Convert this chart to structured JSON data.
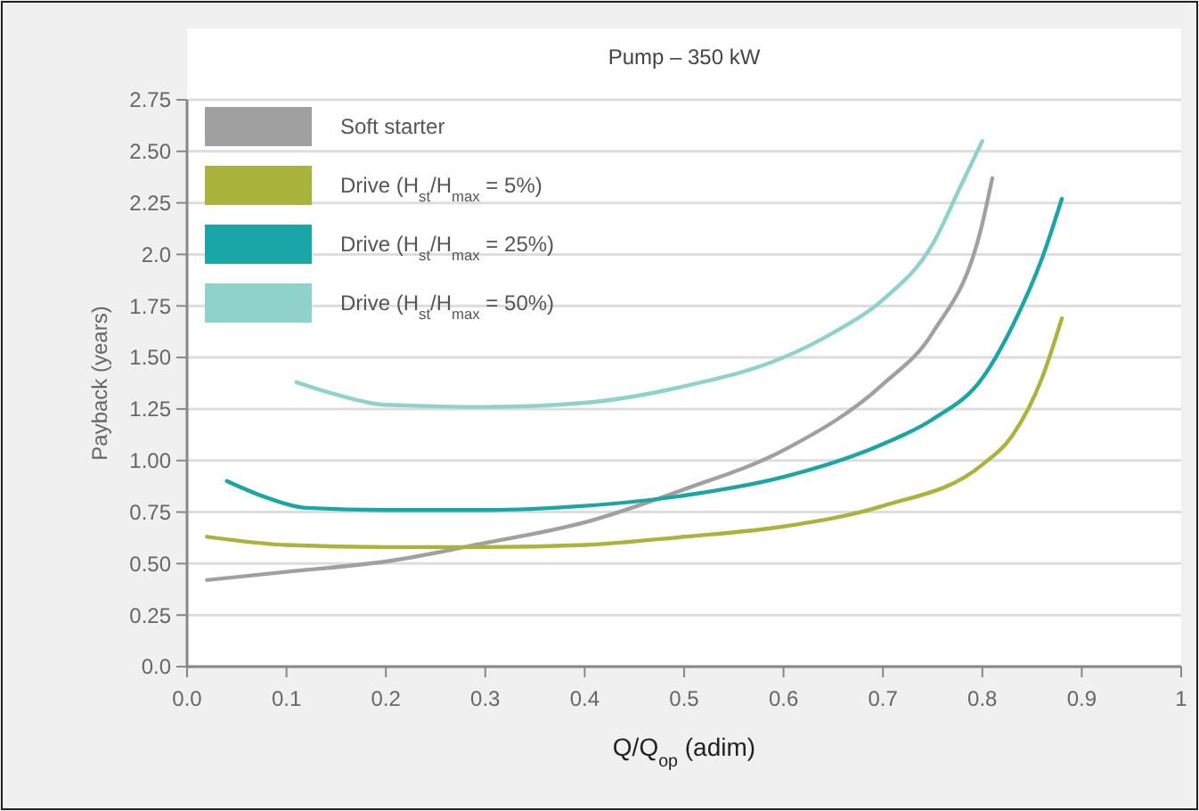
{
  "chart_data": {
    "type": "line",
    "title": "Pump – 350 kW",
    "xlabel": "Q/Q$_{op}$ (adim)",
    "ylabel": "Payback (years)",
    "xlim": [
      0,
      1
    ],
    "xticks": [
      {
        "value": 0,
        "label": "0.0"
      },
      0.1,
      0.2,
      0.3,
      0.4,
      0.5,
      0.6,
      0.7,
      0.8,
      0.9,
      1
    ],
    "ylim": [
      0,
      2.75
    ],
    "yticks": [
      {
        "value": 0,
        "label": "0.0"
      },
      0.25,
      {
        "value": 0.5,
        "label": "0.50"
      },
      0.75,
      {
        "value": 1,
        "label": "1.00"
      },
      1.25,
      {
        "value": 1.5,
        "label": "1.50"
      },
      1.75,
      {
        "value": 2,
        "label": "2.0"
      },
      2.25,
      {
        "value": 2.5,
        "label": "2.50"
      },
      2.75
    ],
    "grid": "y",
    "legend": "top left",
    "marker": "none",
    "line_style": "solid",
    "series": [
      {
        "name": "Soft starter",
        "color": "#a0a0a0",
        "x": [
          0.02,
          0.1,
          0.2,
          0.3,
          0.4,
          0.5,
          0.6,
          0.7,
          0.75,
          0.8,
          0.81
        ],
        "values": [
          0.42,
          0.46,
          0.51,
          0.6,
          0.7,
          0.86,
          1.05,
          1.37,
          1.62,
          2.15,
          2.37
        ]
      },
      {
        "name": "Drive (H$_{st}$/H$_{max}$ = 5%)",
        "color": "#a8b43c",
        "x": [
          0.02,
          0.1,
          0.2,
          0.3,
          0.4,
          0.5,
          0.6,
          0.7,
          0.8,
          0.83,
          0.86,
          0.88
        ],
        "values": [
          0.63,
          0.59,
          0.58,
          0.58,
          0.59,
          0.63,
          0.68,
          0.78,
          0.98,
          1.12,
          1.4,
          1.69
        ]
      },
      {
        "name": "Drive (H$_{st}$/H$_{max}$ = 25%)",
        "color": "#1aa6a6",
        "x": [
          0.04,
          0.08,
          0.12,
          0.2,
          0.3,
          0.4,
          0.5,
          0.6,
          0.7,
          0.75,
          0.8,
          0.83,
          0.86,
          0.88
        ],
        "values": [
          0.9,
          0.82,
          0.77,
          0.76,
          0.76,
          0.78,
          0.83,
          0.92,
          1.08,
          1.2,
          1.4,
          1.65,
          1.98,
          2.27
        ]
      },
      {
        "name": "Drive (H$_{st}$/H$_{max}$ = 50%)",
        "color": "#8fd2cc",
        "x": [
          0.11,
          0.15,
          0.2,
          0.3,
          0.4,
          0.5,
          0.6,
          0.65,
          0.7,
          0.75,
          0.78,
          0.8
        ],
        "values": [
          1.38,
          1.32,
          1.27,
          1.26,
          1.28,
          1.36,
          1.5,
          1.62,
          1.78,
          2.05,
          2.35,
          2.55
        ]
      }
    ]
  }
}
